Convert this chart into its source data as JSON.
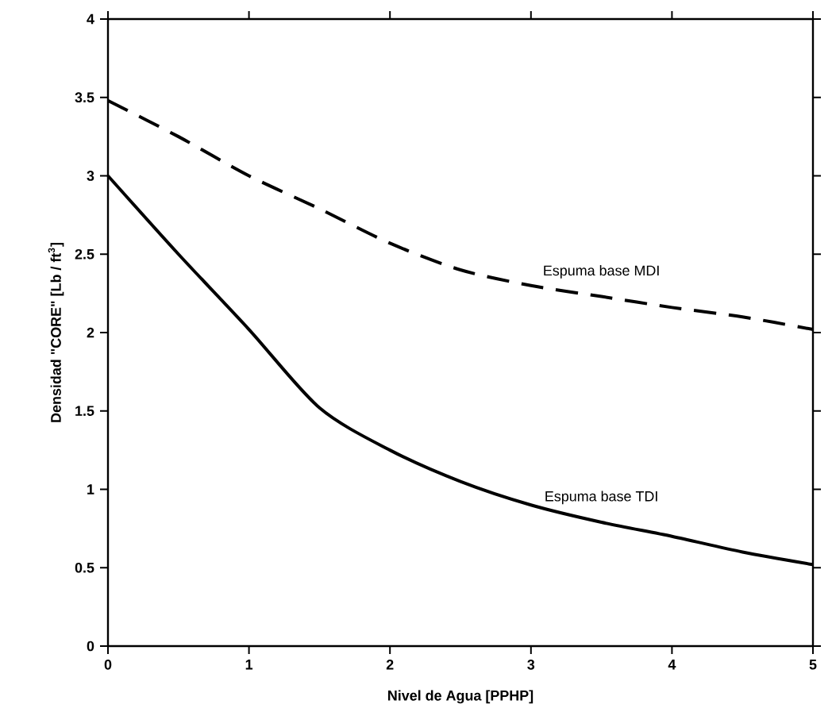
{
  "chart_data": {
    "type": "line",
    "xlabel": "Nivel de Agua [PPHP]",
    "ylabel": "Densidad \"CORE\" [Lb / ft$^{3}$]",
    "xlim": [
      0,
      5
    ],
    "ylim": [
      0,
      4
    ],
    "xticks": [
      0,
      1,
      2,
      3,
      4,
      5
    ],
    "yticks": [
      0,
      0.5,
      1,
      1.5,
      2,
      2.5,
      3,
      3.5,
      4
    ],
    "grid": false,
    "legend": false,
    "marker": "none",
    "x": [
      0,
      0.5,
      1,
      1.5,
      2,
      2.5,
      3,
      3.5,
      4,
      4.5,
      5
    ],
    "series": [
      {
        "name": "Espuma base MDI",
        "color": "#000000",
        "line_style": "dashed",
        "values": [
          3.48,
          3.25,
          3.0,
          2.79,
          2.57,
          2.4,
          2.3,
          2.23,
          2.16,
          2.1,
          2.02
        ]
      },
      {
        "name": "Espuma base TDI",
        "color": "#000000",
        "line_style": "solid",
        "values": [
          3.0,
          2.5,
          2.02,
          1.52,
          1.25,
          1.05,
          0.9,
          0.79,
          0.7,
          0.6,
          0.52
        ]
      }
    ]
  }
}
